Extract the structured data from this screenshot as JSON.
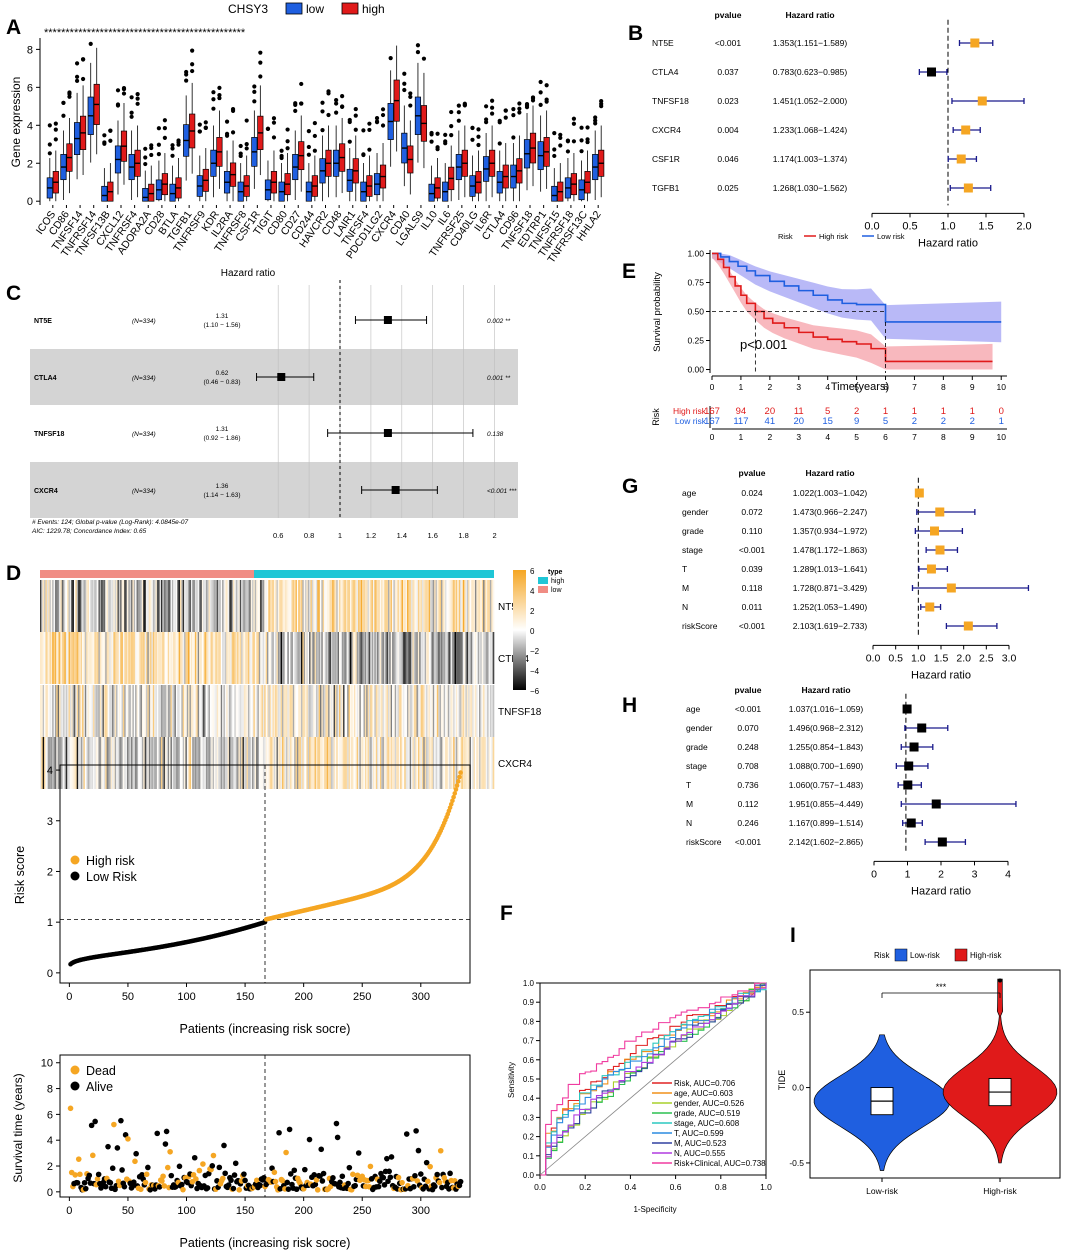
{
  "panel_labels": [
    "A",
    "B",
    "C",
    "D",
    "E",
    "F",
    "G",
    "H",
    "I"
  ],
  "colors": {
    "low": "#1f5fe0",
    "high": "#e01a1a",
    "orange": "#f5a623",
    "black": "#000000",
    "gray_band": "#d4d4d4",
    "teal": "#1fc6d6",
    "salmon": "#f08c84",
    "pink_ci": "#f5a0a8",
    "blue_ci": "#a8a8f5"
  },
  "chart_data": [
    {
      "id": "A",
      "type": "box",
      "title": "",
      "legend_title": "CHSY3",
      "legend": [
        "low",
        "high"
      ],
      "ylabel": "Gene expression",
      "ylim": [
        -0.2,
        8.6
      ],
      "yticks": [
        0,
        2,
        4,
        6,
        8
      ],
      "categories": [
        "ICOS",
        "CD86",
        "TNFSF14",
        "TNFRSF14",
        "TNFSF13B",
        "CXCL12",
        "TNFRSF4",
        "ADORA2A",
        "CD28",
        "BTLA",
        "TGFB1",
        "TNFRSF9",
        "KDR",
        "IL2RA",
        "TNFRSF8",
        "CSF1R",
        "TIGIT",
        "CD80",
        "CD27",
        "CD244",
        "HAVCR2",
        "CD48",
        "LAIR1",
        "TNFSF4",
        "PDCD1LG2",
        "CXCR4",
        "CD40",
        "LGALS9",
        "IL10",
        "IL6",
        "TNFRSF25",
        "CD40LG",
        "IL6R",
        "CTLA4",
        "CD96",
        "TNFSF18",
        "EDTRP1",
        "TNFSF15",
        "TNFRSF18",
        "TNFRSF13C",
        "HHLA2"
      ],
      "low_median": [
        0.7,
        1.8,
        3.3,
        4.5,
        0.3,
        2.2,
        1.8,
        0.2,
        0.6,
        0.4,
        3.2,
        0.8,
        2.0,
        1.0,
        0.5,
        2.6,
        0.6,
        0.5,
        1.8,
        0.5,
        1.6,
        2.0,
        1.1,
        0.5,
        0.9,
        4.2,
        2.8,
        4.5,
        0.4,
        0.5,
        1.8,
        0.8,
        1.7,
        1.0,
        1.3,
        2.5,
        2.4,
        0.3,
        0.7,
        0.6,
        1.8
      ],
      "high_median": [
        1.0,
        2.3,
        3.6,
        5.1,
        0.5,
        2.9,
        2.0,
        0.4,
        0.9,
        0.7,
        3.7,
        1.1,
        2.6,
        1.4,
        0.8,
        3.6,
        1.0,
        0.9,
        2.4,
        0.8,
        2.0,
        2.3,
        1.6,
        0.8,
        1.3,
        5.3,
        2.2,
        4.1,
        0.7,
        1.2,
        2.0,
        1.0,
        2.0,
        1.3,
        1.6,
        2.8,
        2.6,
        0.5,
        0.9,
        1.0,
        2.0
      ],
      "significance": "***********************************************"
    },
    {
      "id": "B",
      "type": "forest",
      "col_pvalue": "pvalue",
      "col_hr": "Hazard ratio",
      "xlabel": "Hazard ratio",
      "xlim": [
        0,
        2.0
      ],
      "xticks": [
        "0.0",
        "0.5",
        "1.0",
        "1.5",
        "2.0"
      ],
      "rows": [
        {
          "gene": "NT5E",
          "p": "<0.001",
          "hr_text": "1.353(1.151−1.589)",
          "hr": 1.353,
          "lo": 1.151,
          "hi": 1.589,
          "color": "orange"
        },
        {
          "gene": "CTLA4",
          "p": "0.037",
          "hr_text": "0.783(0.623−0.985)",
          "hr": 0.783,
          "lo": 0.623,
          "hi": 0.985,
          "color": "black"
        },
        {
          "gene": "TNFSF18",
          "p": "0.023",
          "hr_text": "1.451(1.052−2.000)",
          "hr": 1.451,
          "lo": 1.052,
          "hi": 2.0,
          "color": "orange"
        },
        {
          "gene": "CXCR4",
          "p": "0.004",
          "hr_text": "1.233(1.068−1.424)",
          "hr": 1.233,
          "lo": 1.068,
          "hi": 1.424,
          "color": "orange"
        },
        {
          "gene": "CSF1R",
          "p": "0.046",
          "hr_text": "1.174(1.003−1.374)",
          "hr": 1.174,
          "lo": 1.003,
          "hi": 1.374,
          "color": "orange"
        },
        {
          "gene": "TGFB1",
          "p": "0.025",
          "hr_text": "1.268(1.030−1.562)",
          "hr": 1.268,
          "lo": 1.03,
          "hi": 1.562,
          "color": "orange"
        }
      ]
    },
    {
      "id": "C",
      "type": "forest",
      "title": "Hazard ratio",
      "xticks": [
        "0.6",
        "0.8",
        "1",
        "1.2",
        "1.4",
        "1.6",
        "1.8",
        "2"
      ],
      "xlim": [
        0.45,
        2.1
      ],
      "rows": [
        {
          "gene": "NT5E",
          "n": "(N=334)",
          "hr_top": "1.31",
          "hr_ci": "(1.10 − 1.56)",
          "hr": 1.31,
          "lo": 1.1,
          "hi": 1.56,
          "p": "0.002 **"
        },
        {
          "gene": "CTLA4",
          "n": "(N=334)",
          "hr_top": "0.62",
          "hr_ci": "(0.46 − 0.83)",
          "hr": 0.62,
          "lo": 0.46,
          "hi": 0.83,
          "p": "0.001 **"
        },
        {
          "gene": "TNFSF18",
          "n": "(N=334)",
          "hr_top": "1.31",
          "hr_ci": "(0.92 − 1.86)",
          "hr": 1.31,
          "lo": 0.92,
          "hi": 1.86,
          "p": "0.138"
        },
        {
          "gene": "CXCR4",
          "n": "(N=334)",
          "hr_top": "1.36",
          "hr_ci": "(1.14 − 1.63)",
          "hr": 1.36,
          "lo": 1.14,
          "hi": 1.63,
          "p": "<0.001 ***"
        }
      ],
      "footnote1": "# Events: 124; Global p-value (Log-Rank): 4.0845e-07",
      "footnote2": "AIC: 1229.78; Concordance Index: 0.65"
    },
    {
      "id": "D_heatmap",
      "type": "heatmap",
      "rows": [
        "NT5E",
        "CTLA4",
        "TNFSF18",
        "CXCR4"
      ],
      "legend_ticks": [
        "6",
        "4",
        "2",
        "0",
        "−2",
        "−4",
        "−6"
      ],
      "type_legend_title": "type",
      "type_legend": [
        "high",
        "low"
      ]
    },
    {
      "id": "D_risk",
      "type": "scatter",
      "xlabel": "Patients (increasing risk socre)",
      "ylabel": "Risk score",
      "xlim": [
        -8,
        342
      ],
      "ylim": [
        -0.2,
        4.1
      ],
      "xticks": [
        "0",
        "50",
        "100",
        "150",
        "200",
        "250",
        "300"
      ],
      "yticks": [
        "0",
        "1",
        "2",
        "3",
        "4"
      ],
      "legend": [
        "High risk",
        "Low Risk"
      ],
      "cutoff_x": 167,
      "cutoff_y": 1.05,
      "n": 334
    },
    {
      "id": "D_surv",
      "type": "scatter",
      "xlabel": "Patients (increasing risk socre)",
      "ylabel": "Survival time (years)",
      "xlim": [
        -8,
        342
      ],
      "ylim": [
        -0.4,
        10.6
      ],
      "xticks": [
        "0",
        "50",
        "100",
        "150",
        "200",
        "250",
        "300"
      ],
      "yticks": [
        "0",
        "2",
        "4",
        "6",
        "8",
        "10"
      ],
      "legend": [
        "Dead",
        "Alive"
      ],
      "cutoff_x": 167
    },
    {
      "id": "E",
      "type": "line",
      "legend_title": "Risk",
      "legend": [
        "High risk",
        "Low risk"
      ],
      "xlabel": "Time(years)",
      "ylabel": "Survival probability",
      "xlim": [
        0,
        10.2
      ],
      "ylim": [
        -0.03,
        1.03
      ],
      "xticks": [
        "0",
        "1",
        "2",
        "3",
        "4",
        "5",
        "6",
        "7",
        "8",
        "9",
        "10"
      ],
      "yticks": [
        "0.00",
        "0.25",
        "0.50",
        "0.75",
        "1.00"
      ],
      "pvalue": "p<0.001",
      "high_x": [
        0,
        0.2,
        0.4,
        0.6,
        0.8,
        1.0,
        1.2,
        1.5,
        1.8,
        2.1,
        2.5,
        3.0,
        3.5,
        4.0,
        4.5,
        5.0,
        5.5,
        6.0,
        7.0,
        8.0,
        9.0,
        9.7
      ],
      "high_y": [
        1.0,
        0.95,
        0.88,
        0.8,
        0.72,
        0.64,
        0.57,
        0.5,
        0.44,
        0.4,
        0.36,
        0.32,
        0.28,
        0.26,
        0.24,
        0.22,
        0.18,
        0.07,
        0.07,
        0.07,
        0.07,
        0.07
      ],
      "low_x": [
        0,
        0.3,
        0.6,
        0.9,
        1.2,
        1.5,
        2.0,
        2.5,
        3.0,
        3.5,
        4.0,
        4.5,
        5.0,
        5.5,
        6.0,
        7.0,
        8.0,
        9.0,
        10.0
      ],
      "low_y": [
        1.0,
        0.97,
        0.93,
        0.89,
        0.85,
        0.81,
        0.76,
        0.72,
        0.68,
        0.64,
        0.6,
        0.57,
        0.56,
        0.56,
        0.41,
        0.41,
        0.41,
        0.41,
        0.41
      ],
      "table_title": "Risk",
      "table_rows": [
        {
          "label": "High risk",
          "color": "high",
          "values": [
            "167",
            "94",
            "20",
            "11",
            "5",
            "2",
            "1",
            "1",
            "1",
            "1",
            "0"
          ]
        },
        {
          "label": "Low risk",
          "color": "low",
          "values": [
            "167",
            "117",
            "41",
            "20",
            "15",
            "9",
            "5",
            "2",
            "2",
            "2",
            "1"
          ]
        }
      ]
    },
    {
      "id": "F",
      "type": "line",
      "xlabel": "1-Specificity",
      "ylabel": "Sensitivity",
      "xticks": [
        "0.0",
        "0.2",
        "0.4",
        "0.6",
        "0.8",
        "1.0"
      ],
      "yticks": [
        "0.0",
        "0.1",
        "0.2",
        "0.3",
        "0.4",
        "0.5",
        "0.6",
        "0.7",
        "0.8",
        "0.9",
        "1.0"
      ],
      "series": [
        {
          "name": "Risk, AUC=0.706",
          "color": "#e02424",
          "shape": [
            0.45,
            0.9
          ]
        },
        {
          "name": "age, AUC=0.603",
          "color": "#f0901a",
          "shape": [
            0.3,
            0.55
          ]
        },
        {
          "name": "gender, AUC=0.526",
          "color": "#a8d02c",
          "shape": [
            0.5,
            0.55
          ]
        },
        {
          "name": "grade, AUC=0.519",
          "color": "#2cc050",
          "shape": [
            0.52,
            0.56
          ]
        },
        {
          "name": "stage, AUC=0.608",
          "color": "#2cc8c0",
          "shape": [
            0.35,
            0.62
          ]
        },
        {
          "name": "T, AUC=0.599",
          "color": "#2c8ce0",
          "shape": [
            0.36,
            0.6
          ]
        },
        {
          "name": "M, AUC=0.523",
          "color": "#3040a0",
          "shape": [
            0.46,
            0.52
          ]
        },
        {
          "name": "N, AUC=0.555",
          "color": "#b03ce0",
          "shape": [
            0.42,
            0.5
          ]
        },
        {
          "name": "Risk+Clinical, AUC=0.738",
          "color": "#f03ca0",
          "shape": [
            0.35,
            0.9
          ]
        }
      ]
    },
    {
      "id": "G",
      "type": "forest",
      "col_pvalue": "pvalue",
      "col_hr": "Hazard ratio",
      "xlabel": "Hazard ratio",
      "xlim": [
        0,
        3.0
      ],
      "xticks": [
        "0.0",
        "0.5",
        "1.0",
        "1.5",
        "2.0",
        "2.5",
        "3.0"
      ],
      "rows": [
        {
          "gene": "age",
          "p": "0.024",
          "hr_text": "1.022(1.003−1.042)",
          "hr": 1.022,
          "lo": 1.003,
          "hi": 1.042
        },
        {
          "gene": "gender",
          "p": "0.072",
          "hr_text": "1.473(0.966−2.247)",
          "hr": 1.473,
          "lo": 0.966,
          "hi": 2.247
        },
        {
          "gene": "grade",
          "p": "0.110",
          "hr_text": "1.357(0.934−1.972)",
          "hr": 1.357,
          "lo": 0.934,
          "hi": 1.972
        },
        {
          "gene": "stage",
          "p": "<0.001",
          "hr_text": "1.478(1.172−1.863)",
          "hr": 1.478,
          "lo": 1.172,
          "hi": 1.863
        },
        {
          "gene": "T",
          "p": "0.039",
          "hr_text": "1.289(1.013−1.641)",
          "hr": 1.289,
          "lo": 1.013,
          "hi": 1.641
        },
        {
          "gene": "M",
          "p": "0.118",
          "hr_text": "1.728(0.871−3.429)",
          "hr": 1.728,
          "lo": 0.871,
          "hi": 3.429
        },
        {
          "gene": "N",
          "p": "0.011",
          "hr_text": "1.252(1.053−1.490)",
          "hr": 1.252,
          "lo": 1.053,
          "hi": 1.49
        },
        {
          "gene": "riskScore",
          "p": "<0.001",
          "hr_text": "2.103(1.619−2.733)",
          "hr": 2.103,
          "lo": 1.619,
          "hi": 2.733
        }
      ]
    },
    {
      "id": "H",
      "type": "forest",
      "col_pvalue": "pvalue",
      "col_hr": "Hazard ratio",
      "xlabel": "Hazard ratio",
      "xlim": [
        0,
        4.2
      ],
      "xticks": [
        "0",
        "1",
        "2",
        "3",
        "4"
      ],
      "rows": [
        {
          "gene": "age",
          "p": "<0.001",
          "hr_text": "1.037(1.016−1.059)",
          "hr": 1.037,
          "lo": 1.016,
          "hi": 1.059
        },
        {
          "gene": "gender",
          "p": "0.070",
          "hr_text": "1.496(0.968−2.312)",
          "hr": 1.496,
          "lo": 0.968,
          "hi": 2.312
        },
        {
          "gene": "grade",
          "p": "0.248",
          "hr_text": "1.255(0.854−1.843)",
          "hr": 1.255,
          "lo": 0.854,
          "hi": 1.843
        },
        {
          "gene": "stage",
          "p": "0.708",
          "hr_text": "1.088(0.700−1.690)",
          "hr": 1.088,
          "lo": 0.7,
          "hi": 1.69
        },
        {
          "gene": "T",
          "p": "0.736",
          "hr_text": "1.060(0.757−1.483)",
          "hr": 1.06,
          "lo": 0.757,
          "hi": 1.483
        },
        {
          "gene": "M",
          "p": "0.112",
          "hr_text": "1.951(0.855−4.449)",
          "hr": 1.951,
          "lo": 0.855,
          "hi": 4.449
        },
        {
          "gene": "N",
          "p": "0.246",
          "hr_text": "1.167(0.899−1.514)",
          "hr": 1.167,
          "lo": 0.899,
          "hi": 1.514
        },
        {
          "gene": "riskScore",
          "p": "<0.001",
          "hr_text": "2.142(1.602−2.865)",
          "hr": 2.142,
          "lo": 1.602,
          "hi": 2.865
        }
      ]
    },
    {
      "id": "I",
      "type": "violin",
      "legend_title": "Risk",
      "legend": [
        "Low-risk",
        "High-risk"
      ],
      "categories": [
        "Low-risk",
        "High-risk"
      ],
      "ylabel": "TIDE",
      "yticks": [
        "0.5",
        "0.0",
        "-0.5"
      ],
      "ylim": [
        -0.6,
        0.78
      ],
      "medians": [
        -0.09,
        -0.03
      ],
      "significance": "***"
    }
  ]
}
